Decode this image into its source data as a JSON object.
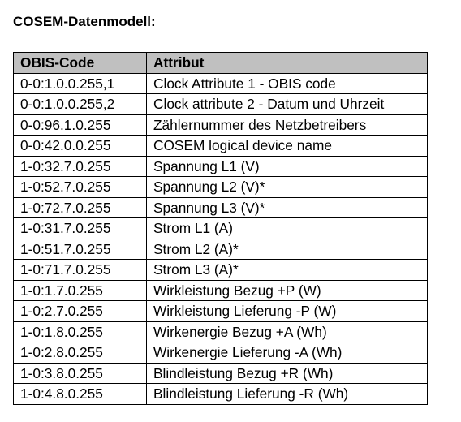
{
  "title": "COSEM-Datenmodell:",
  "table": {
    "headers": [
      "OBIS-Code",
      "Attribut"
    ],
    "rows": [
      [
        "0-0:1.0.0.255,1",
        "Clock Attribute 1 - OBIS code"
      ],
      [
        "0-0:1.0.0.255,2",
        "Clock attribute 2 - Datum und Uhrzeit"
      ],
      [
        "0-0:96.1.0.255",
        "Zählernummer des Netzbetreibers"
      ],
      [
        "0-0:42.0.0.255",
        "COSEM logical device name"
      ],
      [
        "1-0:32.7.0.255",
        "Spannung L1 (V)"
      ],
      [
        "1-0:52.7.0.255",
        "Spannung L2 (V)*"
      ],
      [
        "1-0:72.7.0.255",
        "Spannung L3 (V)*"
      ],
      [
        "1-0:31.7.0.255",
        "Strom L1 (A)"
      ],
      [
        "1-0:51.7.0.255",
        "Strom L2 (A)*"
      ],
      [
        "1-0:71.7.0.255",
        "Strom L3 (A)*"
      ],
      [
        "1-0:1.7.0.255",
        "Wirkleistung Bezug +P (W)"
      ],
      [
        "1-0:2.7.0.255",
        "Wirkleistung Lieferung -P (W)"
      ],
      [
        "1-0:1.8.0.255",
        "Wirkenergie Bezug +A (Wh)"
      ],
      [
        "1-0:2.8.0.255",
        "Wirkenergie Lieferung -A (Wh)"
      ],
      [
        "1-0:3.8.0.255",
        "Blindleistung Bezug +R (Wh)"
      ],
      [
        "1-0:4.8.0.255",
        "Blindleistung Lieferung -R (Wh)"
      ]
    ]
  }
}
